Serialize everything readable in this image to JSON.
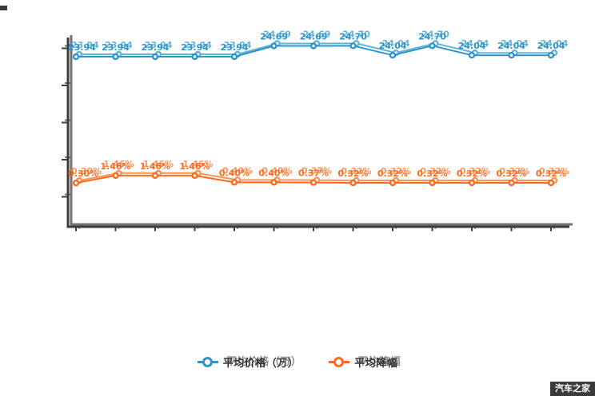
{
  "chart_data": {
    "type": "line",
    "title": "",
    "xlabel": "",
    "ylabel": "",
    "point_count": 13,
    "x_tick_labels_visible": false,
    "y_tick_labels_visible": false,
    "y_tick_count": 5,
    "grid": false,
    "legend_position": "bottom",
    "series": [
      {
        "name": "平均价格（万）",
        "color": "#2b95cc",
        "values": [
          23.94,
          23.94,
          23.94,
          23.94,
          23.94,
          24.69,
          24.69,
          24.7,
          24.04,
          24.7,
          24.04,
          24.04,
          24.04
        ],
        "labels": [
          "23.94",
          "23.94",
          "23.94",
          "23.94",
          "23.94",
          "24.69",
          "24.69",
          "24.70",
          "24.04",
          "24.70",
          "24.04",
          "24.04",
          "24.04"
        ]
      },
      {
        "name": "平均降幅",
        "color": "#fe6a1a",
        "values": [
          0.3,
          1.46,
          1.46,
          1.46,
          0.4,
          0.4,
          0.37,
          0.32,
          0.32,
          0.32,
          0.32,
          0.32,
          0.32
        ],
        "labels": [
          "0.30%",
          "1.46%",
          "1.46%",
          "1.46%",
          "0.40%",
          "0.40%",
          "0.37%",
          "0.32%",
          "0.32%",
          "0.32%",
          "0.32%",
          "0.32%",
          "0.32%"
        ]
      }
    ]
  },
  "legend": {
    "items": [
      {
        "label": "平均价格（万）",
        "color": "#2b95cc"
      },
      {
        "label": "平均降幅",
        "color": "#fe6a1a"
      }
    ]
  },
  "watermark": {
    "text": "汽车之家",
    "bg": "#3b3b3b",
    "fg": "#ffffff"
  },
  "colors": {
    "axis": "#3d3d3d",
    "background": "#ffffff",
    "legend_text": "#333333"
  }
}
